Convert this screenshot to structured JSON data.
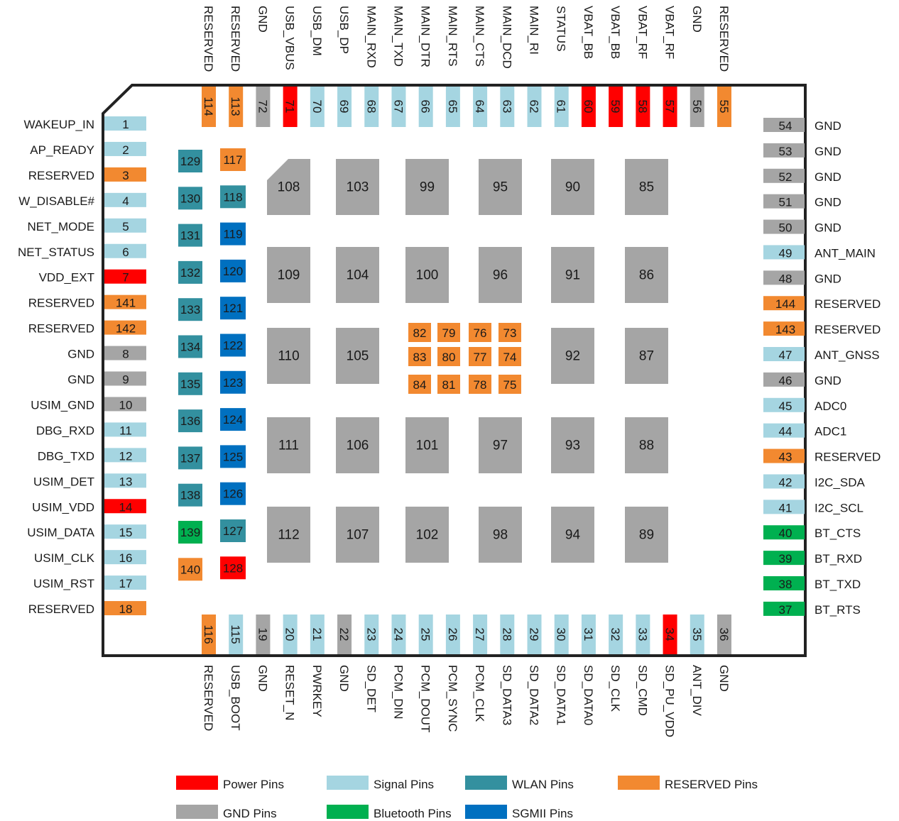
{
  "colors": {
    "power": "#ff0000",
    "signal": "#a5d5e1",
    "wlan": "#33909f",
    "reserved": "#f28930",
    "gnd": "#a5a5a5",
    "bluetooth": "#00b050",
    "sgmii": "#0070c0",
    "outline": "#222222"
  },
  "left_pins": [
    {
      "num": "1",
      "label": "WAKEUP_IN",
      "type": "signal"
    },
    {
      "num": "2",
      "label": "AP_READY",
      "type": "signal"
    },
    {
      "num": "3",
      "label": "RESERVED",
      "type": "reserved"
    },
    {
      "num": "4",
      "label": "W_DISABLE#",
      "type": "signal"
    },
    {
      "num": "5",
      "label": "NET_MODE",
      "type": "signal"
    },
    {
      "num": "6",
      "label": "NET_STATUS",
      "type": "signal"
    },
    {
      "num": "7",
      "label": "VDD_EXT",
      "type": "power"
    },
    {
      "num": "141",
      "label": "RESERVED",
      "type": "reserved"
    },
    {
      "num": "142",
      "label": "RESERVED",
      "type": "reserved"
    },
    {
      "num": "8",
      "label": "GND",
      "type": "gnd"
    },
    {
      "num": "9",
      "label": "GND",
      "type": "gnd"
    },
    {
      "num": "10",
      "label": "USIM_GND",
      "type": "gnd"
    },
    {
      "num": "11",
      "label": "DBG_RXD",
      "type": "signal"
    },
    {
      "num": "12",
      "label": "DBG_TXD",
      "type": "signal"
    },
    {
      "num": "13",
      "label": "USIM_DET",
      "type": "signal"
    },
    {
      "num": "14",
      "label": "USIM_VDD",
      "type": "power"
    },
    {
      "num": "15",
      "label": "USIM_DATA",
      "type": "signal"
    },
    {
      "num": "16",
      "label": "USIM_CLK",
      "type": "signal"
    },
    {
      "num": "17",
      "label": "USIM_RST",
      "type": "signal"
    },
    {
      "num": "18",
      "label": "RESERVED",
      "type": "reserved"
    }
  ],
  "right_pins": [
    {
      "num": "54",
      "label": "GND",
      "type": "gnd"
    },
    {
      "num": "53",
      "label": "GND",
      "type": "gnd"
    },
    {
      "num": "52",
      "label": "GND",
      "type": "gnd"
    },
    {
      "num": "51",
      "label": "GND",
      "type": "gnd"
    },
    {
      "num": "50",
      "label": "GND",
      "type": "gnd"
    },
    {
      "num": "49",
      "label": "ANT_MAIN",
      "type": "signal"
    },
    {
      "num": "48",
      "label": "GND",
      "type": "gnd"
    },
    {
      "num": "144",
      "label": "RESERVED",
      "type": "reserved"
    },
    {
      "num": "143",
      "label": "RESERVED",
      "type": "reserved"
    },
    {
      "num": "47",
      "label": "ANT_GNSS",
      "type": "signal"
    },
    {
      "num": "46",
      "label": "GND",
      "type": "gnd"
    },
    {
      "num": "45",
      "label": "ADC0",
      "type": "signal"
    },
    {
      "num": "44",
      "label": "ADC1",
      "type": "signal"
    },
    {
      "num": "43",
      "label": "RESERVED",
      "type": "reserved"
    },
    {
      "num": "42",
      "label": "I2C_SDA",
      "type": "signal"
    },
    {
      "num": "41",
      "label": "I2C_SCL",
      "type": "signal"
    },
    {
      "num": "40",
      "label": "BT_CTS",
      "type": "bluetooth"
    },
    {
      "num": "39",
      "label": "BT_RXD",
      "type": "bluetooth"
    },
    {
      "num": "38",
      "label": "BT_TXD",
      "type": "bluetooth"
    },
    {
      "num": "37",
      "label": "BT_RTS",
      "type": "bluetooth"
    }
  ],
  "top_pins": [
    {
      "num": "114",
      "label": "RESERVED",
      "type": "reserved"
    },
    {
      "num": "113",
      "label": "RESERVED",
      "type": "reserved"
    },
    {
      "num": "72",
      "label": "GND",
      "type": "gnd"
    },
    {
      "num": "71",
      "label": "USB_VBUS",
      "type": "power"
    },
    {
      "num": "70",
      "label": "USB_DM",
      "type": "signal"
    },
    {
      "num": "69",
      "label": "USB_DP",
      "type": "signal"
    },
    {
      "num": "68",
      "label": "MAIN_RXD",
      "type": "signal"
    },
    {
      "num": "67",
      "label": "MAIN_TXD",
      "type": "signal"
    },
    {
      "num": "66",
      "label": "MAIN_DTR",
      "type": "signal"
    },
    {
      "num": "65",
      "label": "MAIN_RTS",
      "type": "signal"
    },
    {
      "num": "64",
      "label": "MAIN_CTS",
      "type": "signal"
    },
    {
      "num": "63",
      "label": "MAIN_DCD",
      "type": "signal"
    },
    {
      "num": "62",
      "label": "MAIN_RI",
      "type": "signal"
    },
    {
      "num": "61",
      "label": "STATUS",
      "type": "signal"
    },
    {
      "num": "60",
      "label": "VBAT_BB",
      "type": "power"
    },
    {
      "num": "59",
      "label": "VBAT_BB",
      "type": "power"
    },
    {
      "num": "58",
      "label": "VBAT_RF",
      "type": "power"
    },
    {
      "num": "57",
      "label": "VBAT_RF",
      "type": "power"
    },
    {
      "num": "56",
      "label": "GND",
      "type": "gnd"
    },
    {
      "num": "55",
      "label": "RESERVED",
      "type": "reserved"
    }
  ],
  "bottom_pins": [
    {
      "num": "116",
      "label": "RESERVED",
      "type": "reserved"
    },
    {
      "num": "115",
      "label": "USB_BOOT",
      "type": "signal"
    },
    {
      "num": "19",
      "label": "GND",
      "type": "gnd"
    },
    {
      "num": "20",
      "label": "RESET_N",
      "type": "signal"
    },
    {
      "num": "21",
      "label": "PWRKEY",
      "type": "signal"
    },
    {
      "num": "22",
      "label": "GND",
      "type": "gnd"
    },
    {
      "num": "23",
      "label": "SD_DET",
      "type": "signal"
    },
    {
      "num": "24",
      "label": "PCM_DIN",
      "type": "signal"
    },
    {
      "num": "25",
      "label": "PCM_DOUT",
      "type": "signal"
    },
    {
      "num": "26",
      "label": "PCM_SYNC",
      "type": "signal"
    },
    {
      "num": "27",
      "label": "PCM_CLK",
      "type": "signal"
    },
    {
      "num": "28",
      "label": "SD_DATA3",
      "type": "signal"
    },
    {
      "num": "29",
      "label": "SD_DATA2",
      "type": "signal"
    },
    {
      "num": "30",
      "label": "SD_DATA1",
      "type": "signal"
    },
    {
      "num": "31",
      "label": "SD_DATA0",
      "type": "signal"
    },
    {
      "num": "32",
      "label": "SD_CLK",
      "type": "signal"
    },
    {
      "num": "33",
      "label": "SD_CMD",
      "type": "signal"
    },
    {
      "num": "34",
      "label": "SD_PU_VDD",
      "type": "power"
    },
    {
      "num": "35",
      "label": "ANT_DIV",
      "type": "signal"
    },
    {
      "num": "36",
      "label": "GND",
      "type": "gnd"
    }
  ],
  "inner_col_a": [
    {
      "num": "129",
      "type": "wlan"
    },
    {
      "num": "130",
      "type": "wlan"
    },
    {
      "num": "131",
      "type": "wlan"
    },
    {
      "num": "132",
      "type": "wlan"
    },
    {
      "num": "133",
      "type": "wlan"
    },
    {
      "num": "134",
      "type": "wlan"
    },
    {
      "num": "135",
      "type": "wlan"
    },
    {
      "num": "136",
      "type": "wlan"
    },
    {
      "num": "137",
      "type": "wlan"
    },
    {
      "num": "138",
      "type": "wlan"
    },
    {
      "num": "139",
      "type": "bluetooth"
    },
    {
      "num": "140",
      "type": "reserved"
    }
  ],
  "inner_col_b": [
    {
      "num": "117",
      "type": "reserved"
    },
    {
      "num": "118",
      "type": "wlan"
    },
    {
      "num": "119",
      "type": "sgmii"
    },
    {
      "num": "120",
      "type": "sgmii"
    },
    {
      "num": "121",
      "type": "sgmii"
    },
    {
      "num": "122",
      "type": "sgmii"
    },
    {
      "num": "123",
      "type": "sgmii"
    },
    {
      "num": "124",
      "type": "sgmii"
    },
    {
      "num": "125",
      "type": "sgmii"
    },
    {
      "num": "126",
      "type": "sgmii"
    },
    {
      "num": "127",
      "type": "wlan"
    },
    {
      "num": "128",
      "type": "power"
    }
  ],
  "center_grid": [
    {
      "num": "82",
      "type": "reserved"
    },
    {
      "num": "79",
      "type": "reserved"
    },
    {
      "num": "76",
      "type": "reserved"
    },
    {
      "num": "73",
      "type": "reserved"
    },
    {
      "num": "83",
      "type": "reserved"
    },
    {
      "num": "80",
      "type": "reserved"
    },
    {
      "num": "77",
      "type": "reserved"
    },
    {
      "num": "74",
      "type": "reserved"
    },
    {
      "num": "84",
      "type": "reserved"
    },
    {
      "num": "81",
      "type": "reserved"
    },
    {
      "num": "78",
      "type": "reserved"
    },
    {
      "num": "75",
      "type": "reserved"
    }
  ],
  "gnd_pads": [
    {
      "num": "108",
      "type": "gnd"
    },
    {
      "num": "103",
      "type": "gnd"
    },
    {
      "num": "99",
      "type": "gnd"
    },
    {
      "num": "95",
      "type": "gnd"
    },
    {
      "num": "90",
      "type": "gnd"
    },
    {
      "num": "85",
      "type": "gnd"
    },
    {
      "num": "109",
      "type": "gnd"
    },
    {
      "num": "104",
      "type": "gnd"
    },
    {
      "num": "100",
      "type": "gnd"
    },
    {
      "num": "96",
      "type": "gnd"
    },
    {
      "num": "91",
      "type": "gnd"
    },
    {
      "num": "86",
      "type": "gnd"
    },
    {
      "num": "110",
      "type": "gnd"
    },
    {
      "num": "105",
      "type": "gnd"
    },
    {
      "num": "92",
      "type": "gnd"
    },
    {
      "num": "87",
      "type": "gnd"
    },
    {
      "num": "111",
      "type": "gnd"
    },
    {
      "num": "106",
      "type": "gnd"
    },
    {
      "num": "101",
      "type": "gnd"
    },
    {
      "num": "97",
      "type": "gnd"
    },
    {
      "num": "93",
      "type": "gnd"
    },
    {
      "num": "88",
      "type": "gnd"
    },
    {
      "num": "112",
      "type": "gnd"
    },
    {
      "num": "107",
      "type": "gnd"
    },
    {
      "num": "102",
      "type": "gnd"
    },
    {
      "num": "98",
      "type": "gnd"
    },
    {
      "num": "94",
      "type": "gnd"
    },
    {
      "num": "89",
      "type": "gnd"
    }
  ],
  "legend": [
    {
      "label": "Power Pins",
      "type": "power"
    },
    {
      "label": "Signal Pins",
      "type": "signal"
    },
    {
      "label": "WLAN Pins",
      "type": "wlan"
    },
    {
      "label": "RESERVED Pins",
      "type": "reserved"
    },
    {
      "label": "GND Pins",
      "type": "gnd"
    },
    {
      "label": "Bluetooth Pins",
      "type": "bluetooth"
    },
    {
      "label": "SGMII Pins",
      "type": "sgmii"
    }
  ]
}
